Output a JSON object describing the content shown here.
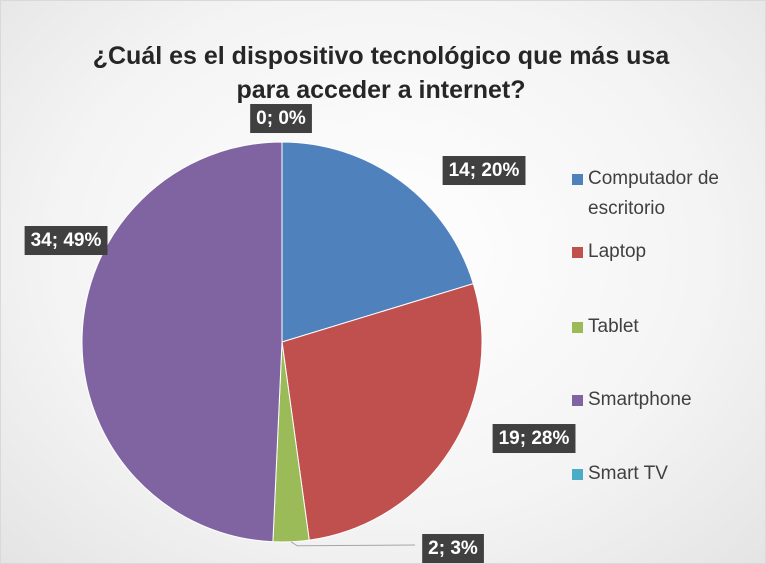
{
  "chart_data": {
    "type": "pie",
    "title": "¿Cuál es el dispositivo tecnológico que más usa para acceder a internet?",
    "categories": [
      "Computador de escritorio",
      "Laptop",
      "Tablet",
      "Smartphone",
      "Smart TV"
    ],
    "values": [
      14,
      19,
      2,
      34,
      0
    ],
    "value_labels": [
      "14; 20%",
      "19; 28%",
      "2; 3%",
      "34; 49%",
      "0; 0%"
    ],
    "colors": [
      "#4f81bd",
      "#c0504d",
      "#9bbb59",
      "#8064a2",
      "#4bacc6"
    ],
    "legend": "right"
  }
}
